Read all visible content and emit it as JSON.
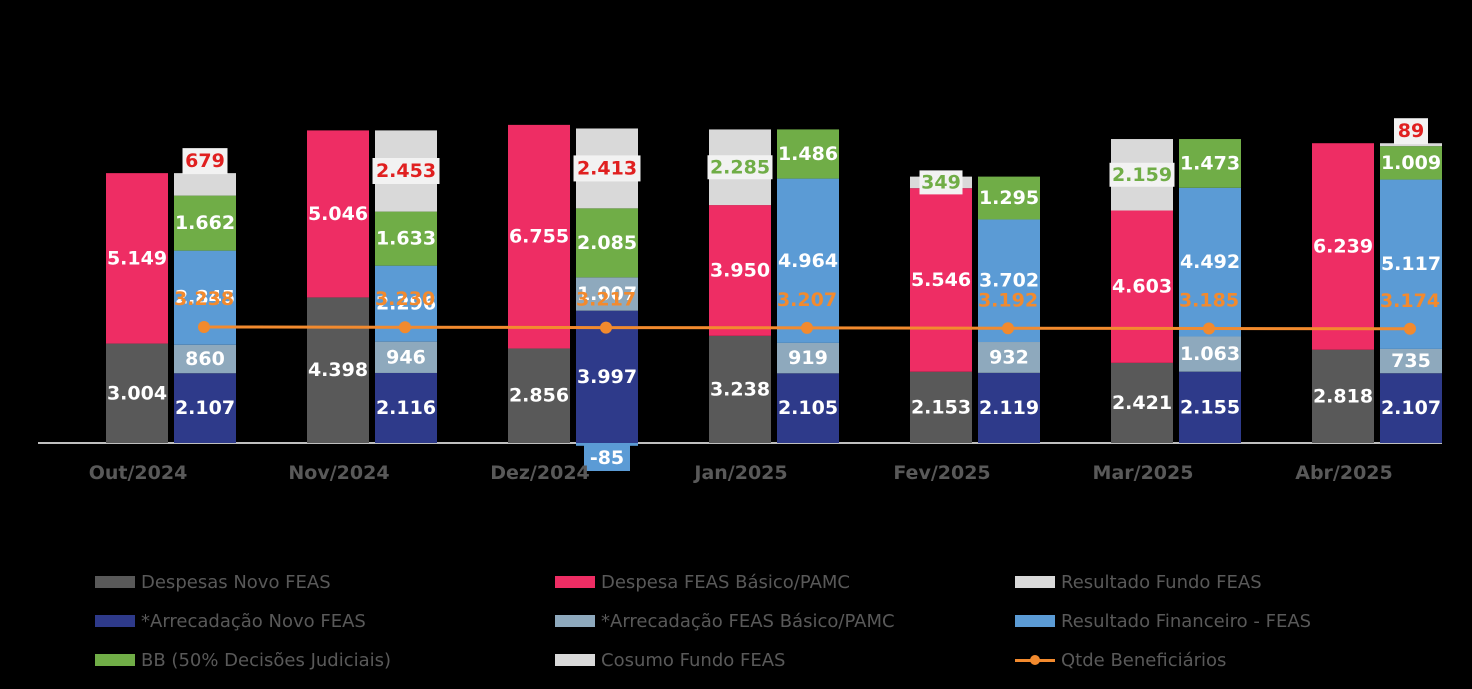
{
  "chart_data": {
    "type": "bar",
    "title": "",
    "categories": [
      "Out/2024",
      "Nov/2024",
      "Dez/2024",
      "Jan/2025",
      "Fev/2025",
      "Mar/2025",
      "Abr/2025"
    ],
    "stack_left": [
      {
        "name": "Despesas Novo FEAS",
        "color": "#595959",
        "values": [
          "3.004",
          "4.398",
          "2.856",
          "3.238",
          "2.153",
          "2.421",
          "2.818"
        ]
      },
      {
        "name": "Despesa FEAS Básico/PAMC",
        "color": "#ee2d64",
        "values": [
          "5.149",
          "5.046",
          "6.755",
          "3.950",
          "5.546",
          "4.603",
          "6.239"
        ]
      },
      {
        "name": "Resultado Fundo FEAS",
        "color": "#d9d9d9",
        "values": [
          null,
          null,
          null,
          "2.285",
          "349",
          "2.159",
          null
        ]
      }
    ],
    "stack_right": [
      {
        "name": "*Arrecadação Novo FEAS",
        "color": "#2e3a8a",
        "values": [
          "2.107",
          "2.116",
          "3.997",
          "2.105",
          "2.119",
          "2.155",
          "2.107"
        ]
      },
      {
        "name": "*Arrecadação FEAS Básico/PAMC",
        "color": "#8ea9bd",
        "values": [
          "860",
          "946",
          "1.007",
          "919",
          "932",
          "1.063",
          "735"
        ]
      },
      {
        "name": "Resultado Financeiro - FEAS",
        "color": "#5b9bd5",
        "values": [
          "2.845",
          "2.296",
          "-85",
          "4.964",
          "3.702",
          "4.492",
          "5.117"
        ]
      },
      {
        "name": "BB (50% Decisões Judiciais)",
        "color": "#70ad47",
        "values": [
          "1.662",
          "1.633",
          "2.085",
          "1.486",
          "1.295",
          "1.473",
          "1.009"
        ]
      },
      {
        "name": "Cosumo Fundo FEAS",
        "color": "#d9d9d9",
        "values": [
          "679",
          "2.453",
          "2.413",
          null,
          null,
          null,
          "89"
        ]
      }
    ],
    "line": {
      "name": "Qtde Beneficiários",
      "color": "#f28a2e",
      "values": [
        "3.238",
        "3.230",
        "3.217",
        "3.207",
        "3.192",
        "3.185",
        "3.174"
      ]
    },
    "legend": [
      [
        "Despesas Novo FEAS",
        "#595959",
        "bar"
      ],
      [
        "Despesa FEAS Básico/PAMC",
        "#ee2d64",
        "bar"
      ],
      [
        "Resultado Fundo FEAS",
        "#d9d9d9",
        "bar"
      ],
      [
        "*Arrecadação Novo FEAS",
        "#2e3a8a",
        "bar"
      ],
      [
        "*Arrecadação FEAS Básico/PAMC",
        "#8ea9bd",
        "bar"
      ],
      [
        "Resultado Financeiro - FEAS",
        "#5b9bd5",
        "bar"
      ],
      [
        "BB (50% Decisões Judiciais)",
        "#70ad47",
        "bar"
      ],
      [
        "Cosumo Fundo FEAS",
        "#d9d9d9",
        "bar"
      ],
      [
        "Qtde Beneficiários",
        "#f28a2e",
        "line"
      ]
    ],
    "legend_placement": "bottom"
  }
}
